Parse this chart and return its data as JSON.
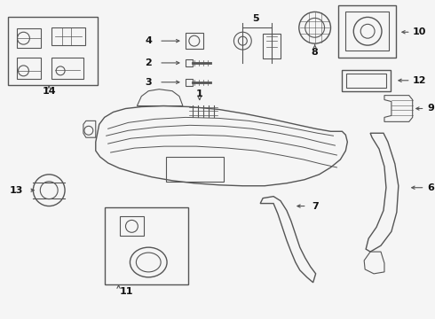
{
  "bg_color": "#f5f5f5",
  "line_color": "#555555",
  "label_color": "#111111",
  "figsize": [
    4.9,
    3.6
  ],
  "dpi": 100
}
